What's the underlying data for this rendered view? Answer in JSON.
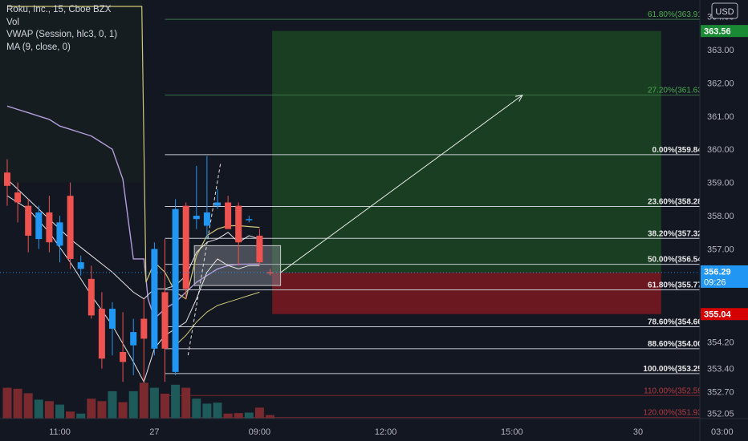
{
  "legend": {
    "symbol": "Roku, Inc., 15, Cboe BZX",
    "vol": "Vol",
    "vwap": "VWAP (Session, hlc3, 0, 1)",
    "ma": "MA (9, close, 0)"
  },
  "currency_label": "USD",
  "colors": {
    "background": "#131722",
    "up": "#2196f3",
    "down": "#ef5350",
    "vol_up": "#1f5a5a",
    "vol_down": "#7a2a2f",
    "vwap": "#b39ddb",
    "ma": "#d0c87a",
    "fib_line": "#d1d4dc",
    "target_zone": "#1f5f23",
    "stop_zone": "#8b1a22"
  },
  "price_tags": [
    {
      "label": "363.56",
      "price": 363.56,
      "color": "#1b8a35"
    },
    {
      "label": "356.30",
      "price": 356.3,
      "color": "#d1d4dc"
    },
    {
      "label": "356.29",
      "countdown": "09:26",
      "price": 356.29,
      "color": "#2196f3"
    },
    {
      "label": "355.04",
      "price": 355.04,
      "color": "#d50000"
    }
  ],
  "chart_data": {
    "type": "candlestick",
    "title": "Roku, Inc., 15, Cboe BZX",
    "ylim": [
      351.8,
      364.3
    ],
    "y_ticks": [
      352.05,
      352.7,
      353.4,
      354.2,
      355.0,
      356.0,
      357.0,
      358.0,
      359.0,
      360.0,
      361.0,
      362.0,
      363.0,
      364.0
    ],
    "x_ticks": [
      {
        "label": "11:00",
        "bar": 5
      },
      {
        "label": "27",
        "bar": 14
      },
      {
        "label": "09:00",
        "bar": 24
      },
      {
        "label": "12:00",
        "bar": 36
      },
      {
        "label": "15:00",
        "bar": 48
      },
      {
        "label": "30",
        "bar": 60
      },
      {
        "label": "03:00",
        "bar": 68
      }
    ],
    "candles": [
      {
        "o": 359.3,
        "h": 359.7,
        "l": 358.3,
        "c": 358.9,
        "v": 0.62
      },
      {
        "o": 358.7,
        "h": 359.0,
        "l": 357.8,
        "c": 358.4,
        "v": 0.6
      },
      {
        "o": 358.3,
        "h": 358.5,
        "l": 356.9,
        "c": 357.4,
        "v": 0.51
      },
      {
        "o": 357.3,
        "h": 358.3,
        "l": 357.0,
        "c": 358.1,
        "v": 0.38
      },
      {
        "o": 358.1,
        "h": 358.6,
        "l": 356.9,
        "c": 357.2,
        "v": 0.35
      },
      {
        "o": 357.1,
        "h": 358.0,
        "l": 356.6,
        "c": 357.8,
        "v": 0.28
      },
      {
        "o": 358.6,
        "h": 359.0,
        "l": 356.4,
        "c": 356.7,
        "v": 0.14
      },
      {
        "o": 356.4,
        "h": 356.8,
        "l": 356.2,
        "c": 356.6,
        "v": 0.1
      },
      {
        "o": 356.1,
        "h": 356.5,
        "l": 354.9,
        "c": 355.0,
        "v": 0.4
      },
      {
        "o": 355.2,
        "h": 355.7,
        "l": 353.4,
        "c": 353.7,
        "v": 0.35
      },
      {
        "o": 354.6,
        "h": 355.4,
        "l": 353.8,
        "c": 355.2,
        "v": 0.55
      },
      {
        "o": 353.9,
        "h": 355.1,
        "l": 353.0,
        "c": 353.6,
        "v": 0.33
      },
      {
        "o": 354.1,
        "h": 354.9,
        "l": 353.2,
        "c": 354.5,
        "v": 0.55
      },
      {
        "o": 354.9,
        "h": 355.5,
        "l": 353.0,
        "c": 354.3,
        "v": 0.72
      },
      {
        "o": 354.0,
        "h": 357.2,
        "l": 353.8,
        "c": 357.0,
        "v": 0.62
      },
      {
        "o": 355.7,
        "h": 357.3,
        "l": 353.0,
        "c": 354.0,
        "v": 0.5
      },
      {
        "o": 353.3,
        "h": 358.5,
        "l": 353.2,
        "c": 358.2,
        "v": 0.68
      },
      {
        "o": 358.3,
        "h": 358.4,
        "l": 355.5,
        "c": 355.8,
        "v": 0.62
      },
      {
        "o": 357.9,
        "h": 359.5,
        "l": 357.6,
        "c": 358.0,
        "v": 0.4
      },
      {
        "o": 357.7,
        "h": 359.8,
        "l": 357.3,
        "c": 358.1,
        "v": 0.3
      },
      {
        "o": 358.3,
        "h": 358.8,
        "l": 358.2,
        "c": 358.4,
        "v": 0.32
      },
      {
        "o": 358.4,
        "h": 358.6,
        "l": 357.6,
        "c": 357.6,
        "v": 0.1
      },
      {
        "o": 358.3,
        "h": 358.4,
        "l": 356.5,
        "c": 357.2,
        "v": 0.11
      },
      {
        "o": 357.9,
        "h": 358.0,
        "l": 357.8,
        "c": 357.9,
        "v": 0.12
      },
      {
        "o": 357.4,
        "h": 357.6,
        "l": 356.5,
        "c": 356.6,
        "v": 0.22
      },
      {
        "o": 356.3,
        "h": 356.4,
        "l": 356.2,
        "c": 356.29,
        "v": 0.07
      }
    ],
    "vwap": [
      [
        0,
        361.3
      ],
      [
        1,
        361.2
      ],
      [
        2,
        361.1
      ],
      [
        3,
        361.0
      ],
      [
        4,
        360.9
      ],
      [
        5,
        360.7
      ],
      [
        6,
        360.6
      ],
      [
        7,
        360.5
      ],
      [
        8,
        360.4
      ],
      [
        9,
        360.2
      ],
      [
        10,
        360.0
      ],
      [
        11,
        359.1
      ],
      [
        12,
        356.7
      ],
      [
        13,
        356.7
      ],
      [
        13.4,
        355.5
      ],
      [
        14,
        354.9
      ],
      [
        15,
        355.2
      ],
      [
        16,
        355.4
      ],
      [
        17,
        355.7
      ],
      [
        18,
        356.0
      ],
      [
        19,
        356.2
      ],
      [
        20,
        356.4
      ],
      [
        21,
        356.5
      ],
      [
        22,
        356.54
      ],
      [
        24,
        356.55
      ]
    ],
    "ma": [
      [
        0,
        364.3
      ],
      [
        12.8,
        364.3
      ],
      [
        13.2,
        356.0
      ],
      [
        14,
        356.6
      ],
      [
        15,
        356.3
      ],
      [
        16,
        355.7
      ],
      [
        17,
        355.5
      ],
      [
        18,
        356.8
      ],
      [
        19,
        357.4
      ],
      [
        20,
        357.6
      ],
      [
        21,
        357.7
      ],
      [
        22,
        357.7
      ],
      [
        24,
        357.65
      ]
    ],
    "band_upper": [
      [
        0,
        359.1
      ],
      [
        2,
        358.5
      ],
      [
        4,
        357.9
      ],
      [
        6,
        357.3
      ],
      [
        8,
        356.8
      ],
      [
        10,
        356.3
      ],
      [
        12,
        355.7
      ],
      [
        13,
        355.5
      ],
      [
        14,
        355.8
      ],
      [
        15,
        355.8
      ],
      [
        16,
        355.9
      ],
      [
        17,
        356.2
      ],
      [
        18,
        356.9
      ],
      [
        19,
        357.2
      ],
      [
        20,
        357.3
      ],
      [
        21,
        357.5
      ],
      [
        22,
        357.2
      ],
      [
        23,
        357.4
      ],
      [
        24,
        357.3
      ]
    ],
    "band_lower": [
      [
        0,
        358.6
      ],
      [
        2,
        358.2
      ],
      [
        4,
        357.5
      ],
      [
        6,
        356.6
      ],
      [
        8,
        355.6
      ],
      [
        10,
        354.7
      ],
      [
        12,
        353.6
      ],
      [
        13,
        353.0
      ],
      [
        14,
        354.0
      ],
      [
        15,
        354.4
      ],
      [
        16,
        354.6
      ],
      [
        17,
        354.8
      ],
      [
        18,
        355.5
      ],
      [
        19,
        356.3
      ],
      [
        20,
        356.7
      ],
      [
        21,
        356.5
      ],
      [
        22,
        356.4
      ],
      [
        23,
        356.5
      ],
      [
        24,
        356.5
      ]
    ],
    "band_lower_2": [
      [
        16,
        354.1
      ],
      [
        17,
        354.4
      ],
      [
        18,
        354.8
      ],
      [
        19,
        355.1
      ],
      [
        20,
        355.3
      ],
      [
        21,
        355.4
      ],
      [
        22,
        355.5
      ],
      [
        23,
        355.6
      ],
      [
        24,
        355.7
      ]
    ],
    "fib_levels": [
      {
        "label": "61.80%(363.91)",
        "price": 363.91,
        "style": "dim"
      },
      {
        "label": "27.20%(361.63)",
        "price": 361.63,
        "style": "dim"
      },
      {
        "label": "0.00%(359.84)",
        "price": 359.84,
        "style": "main"
      },
      {
        "label": "23.60%(358.28)",
        "price": 358.28,
        "style": "main"
      },
      {
        "label": "38.20%(357.32)",
        "price": 357.32,
        "style": "main"
      },
      {
        "label": "50.00%(356.54)",
        "price": 356.54,
        "style": "main"
      },
      {
        "label": "61.80%(355.77)",
        "price": 355.77,
        "style": "main"
      },
      {
        "label": "78.60%(354.66)",
        "price": 354.66,
        "style": "main"
      },
      {
        "label": "88.60%(354.00)",
        "price": 354.0,
        "style": "main"
      },
      {
        "label": "100.00%(353.25)",
        "price": 353.25,
        "style": "main"
      },
      {
        "label": "110.00%(352.59)",
        "price": 352.59,
        "style": "red"
      },
      {
        "label": "120.00%(351.93)",
        "price": 351.93,
        "style": "red"
      }
    ],
    "position": {
      "entry": 356.29,
      "target": 363.56,
      "stop": 355.04,
      "start_bar": 25.2,
      "end_bar": 62.2
    },
    "trend_arrow": {
      "from": [
        26.0,
        356.29
      ],
      "to": [
        49.0,
        361.63
      ]
    },
    "dashed_path": [
      [
        17.2,
        353.8
      ],
      [
        20.3,
        359.6
      ]
    ],
    "highlight_box": {
      "bar_from": 17.8,
      "bar_to": 26.0,
      "price_from": 355.9,
      "price_to": 357.1
    }
  }
}
